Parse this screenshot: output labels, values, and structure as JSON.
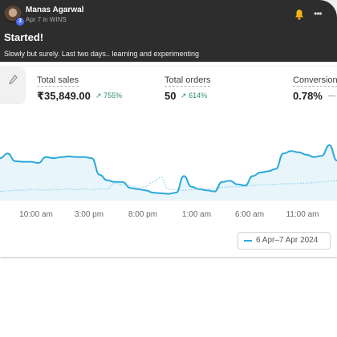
{
  "post": {
    "author": "Manas Agarwal",
    "meta": "Apr 7 in WINS",
    "badge": "3",
    "title": "Started!",
    "body": "Slowly but surely. Last two days.. learning and experimenting",
    "icons": [
      "bell-icon",
      "more-icon",
      "pencil-icon"
    ]
  },
  "metrics": [
    {
      "label": "Total sales",
      "value": "₹35,849.00",
      "change": "755%"
    },
    {
      "label": "Total orders",
      "value": "50",
      "change": "614%"
    },
    {
      "label": "Conversion",
      "value": "0.78%",
      "change": "—"
    }
  ],
  "colors": {
    "primary_series": "#2aa9d8",
    "comparison_series": "#8fd2ec",
    "positive": "#2a8a72",
    "header": "#2d2d2d"
  },
  "legend": {
    "label": "6 Apr–7 Apr 2024"
  },
  "chart_data": {
    "type": "line",
    "x_ticks": [
      "10:00 am",
      "3:00 pm",
      "8:00 pm",
      "1:00 am",
      "6:00 am",
      "11:00 am"
    ],
    "series": [
      {
        "name": "6 Apr–7 Apr 2024",
        "style": "solid",
        "values": [
          70,
          78,
          65,
          64,
          64,
          62,
          72,
          70,
          72,
          73,
          72,
          72,
          70,
          42,
          33,
          30,
          30,
          20,
          18,
          16,
          12,
          11,
          10,
          12,
          40,
          22,
          18,
          16,
          14,
          30,
          32,
          26,
          24,
          40,
          46,
          48,
          52,
          78,
          82,
          80,
          76,
          72,
          74,
          92,
          66
        ]
      },
      {
        "style": "dotted",
        "values": [
          14,
          15,
          16,
          16,
          17,
          17,
          16,
          17,
          17,
          18,
          17,
          18,
          17,
          18,
          18,
          28,
          26,
          24,
          20,
          22,
          30,
          38,
          18,
          17,
          16,
          17,
          18,
          19,
          20,
          21,
          22,
          22,
          23,
          24,
          25,
          26,
          26,
          27,
          27,
          28,
          28,
          29,
          30,
          31,
          32
        ]
      }
    ]
  }
}
